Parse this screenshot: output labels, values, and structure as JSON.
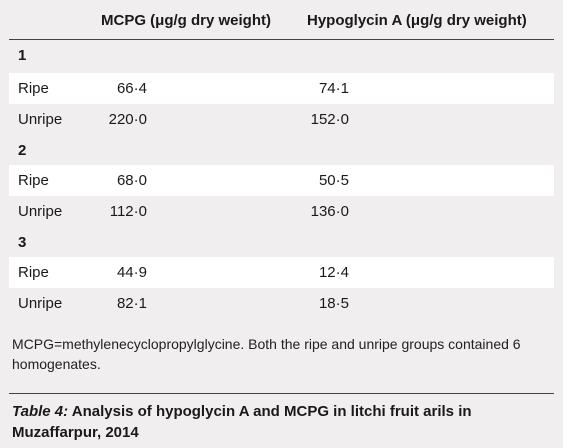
{
  "table": {
    "headers": {
      "mcpg": "MCPG (μg/g dry weight)",
      "hypoglycin": "Hypoglycin A (μg/g dry weight)"
    },
    "groups": [
      {
        "label": "1",
        "rows": [
          {
            "label": "Ripe",
            "mcpg": "66·4",
            "hypoglycin": "74·1"
          },
          {
            "label": "Unripe",
            "mcpg": "220·0",
            "hypoglycin": "152·0"
          }
        ]
      },
      {
        "label": "2",
        "rows": [
          {
            "label": "Ripe",
            "mcpg": "68·0",
            "hypoglycin": "50·5"
          },
          {
            "label": "Unripe",
            "mcpg": "112·0",
            "hypoglycin": "136·0"
          }
        ]
      },
      {
        "label": "3",
        "rows": [
          {
            "label": "Ripe",
            "mcpg": "44·9",
            "hypoglycin": "12·4"
          },
          {
            "label": "Unripe",
            "mcpg": "82·1",
            "hypoglycin": "18·5"
          }
        ]
      }
    ]
  },
  "footnote": "MCPG=methylenecyclopropylglycine. Both the ripe and unripe groups contained 6 homogenates.",
  "caption": {
    "label": "Table 4:",
    "text": " Analysis of hypoglycin A and MCPG in litchi fruit arils in Muzaffarpur, 2014"
  },
  "colors": {
    "background": "#f0eeef",
    "band": "#ffffff",
    "rule": "#444444"
  }
}
